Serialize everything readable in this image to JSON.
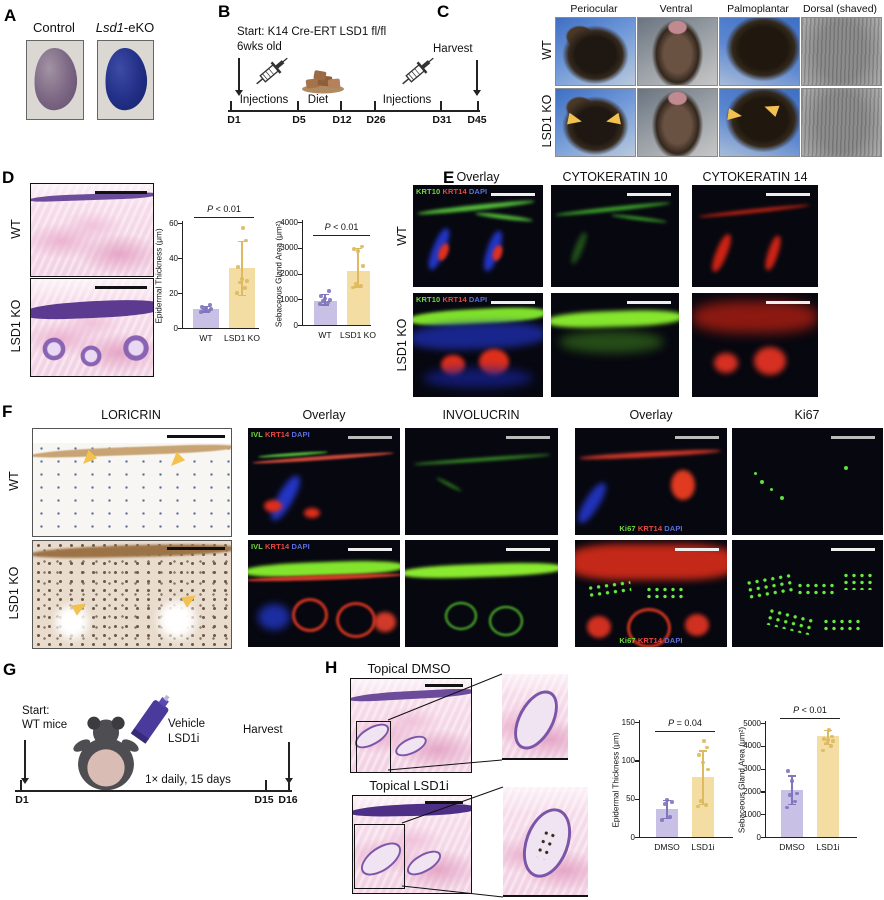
{
  "colors": {
    "purple_fill": "#c9c0e5",
    "purple_dot": "#8076bd",
    "yellow_fill": "#f4dda3",
    "yellow_dot": "#ddb95f",
    "arrowhead_gold": "#f2c14e",
    "krt_green": "#6fdc3c",
    "krt_red": "#e8483f",
    "dapi_blue": "#5b6ede"
  },
  "icons": {
    "syringe": "syringe-icon",
    "diet": "diet-chow-icon",
    "mouse": "mouse-icon",
    "tube": "ointment-tube-icon"
  },
  "panel_a": {
    "label": "A",
    "control": "Control",
    "eko_italic": "Lsd1",
    "eko_suffix": "-eKO"
  },
  "panel_b": {
    "label": "B",
    "line1": "Start: K14 Cre-ERT LSD1 fl/fl",
    "line2": "6wks old",
    "harvest": "Harvest",
    "segments": [
      "Injections",
      "Diet",
      "Injections"
    ],
    "timepoints": [
      "D1",
      "D5",
      "D12",
      "D26",
      "D31",
      "D45"
    ]
  },
  "panel_c": {
    "label": "C",
    "columns": [
      "Periocular",
      "Ventral",
      "Palmoplantar",
      "Dorsal (shaved)"
    ],
    "rows": [
      "WT",
      "LSD1 KO"
    ]
  },
  "panel_d": {
    "label": "D",
    "rows": [
      "WT",
      "LSD1 KO"
    ]
  },
  "panel_e": {
    "label": "E",
    "columns": [
      "Overlay",
      "CYTOKERATIN 10",
      "CYTOKERATIN 14"
    ],
    "rows": [
      "WT",
      "LSD1 KO"
    ],
    "legend": [
      "KRT10",
      "KRT14",
      "DAPI"
    ]
  },
  "panel_f": {
    "label": "F",
    "columns": [
      "LORICRIN",
      "Overlay",
      "INVOLUCRIN",
      "Overlay",
      "Ki67"
    ],
    "rows": [
      "WT",
      "LSD1 KO"
    ],
    "ivl_legend": [
      "IVL",
      "KRT14",
      "DAPI"
    ],
    "ki67_legend": [
      "Ki67",
      "KRT14",
      "DAPI"
    ]
  },
  "panel_g": {
    "label": "G",
    "start_line1": "Start:",
    "start_line2": "WT mice",
    "treatment_line1": "Vehicle",
    "treatment_line2": "LSD1i",
    "regimen": "1× daily, 15 days",
    "harvest": "Harvest",
    "timepoints": [
      "D1",
      "D15",
      "D16"
    ]
  },
  "panel_h": {
    "label": "H",
    "titles": [
      "Topical DMSO",
      "Topical LSD1i"
    ]
  },
  "chart_data": [
    {
      "type": "bar",
      "panel": "D",
      "categories": [
        "WT",
        "LSD1 KO"
      ],
      "values": [
        11,
        34.5
      ],
      "points": [
        [
          9,
          10,
          10.5,
          11,
          11.5,
          12,
          13
        ],
        [
          20,
          23,
          26,
          27,
          28,
          35,
          50,
          57
        ]
      ],
      "error": [
        [
          9.5,
          12.5
        ],
        [
          19,
          50
        ]
      ],
      "p_label": "P < 0.01",
      "ylabel": "Epidermal Thickness (μm)",
      "ylim": [
        0,
        60
      ],
      "yticks": [
        0,
        20,
        40,
        60
      ],
      "colors": [
        "purple",
        "yellow"
      ]
    },
    {
      "type": "bar",
      "panel": "D",
      "categories": [
        "WT",
        "LSD1 KO"
      ],
      "values": [
        950,
        2100
      ],
      "points": [
        [
          820,
          880,
          930,
          970,
          1030,
          1120,
          1320
        ],
        [
          1450,
          1520,
          1600,
          2300,
          2880,
          2950,
          3050
        ]
      ],
      "error": [
        [
          800,
          1200
        ],
        [
          1500,
          3000
        ]
      ],
      "p_label": "P < 0.01",
      "ylabel": "Sebaceous Gland Area (μm²)",
      "ylim": [
        0,
        4000
      ],
      "yticks": [
        0,
        1000,
        2000,
        3000,
        4000
      ],
      "colors": [
        "purple",
        "yellow"
      ]
    },
    {
      "type": "bar",
      "panel": "H",
      "categories": [
        "DMSO",
        "LSD1i"
      ],
      "values": [
        37,
        78
      ],
      "points": [
        [
          22,
          26,
          43,
          46,
          48
        ],
        [
          40,
          42,
          47,
          88,
          97,
          107,
          117,
          125
        ]
      ],
      "error": [
        [
          25,
          48
        ],
        [
          43,
          113
        ]
      ],
      "p_label": "P = 0.04",
      "ylabel": "Epidermal Thickness (μm)",
      "ylim": [
        0,
        150
      ],
      "yticks": [
        0,
        50,
        100,
        150
      ],
      "colors": [
        "purple",
        "yellow"
      ]
    },
    {
      "type": "bar",
      "panel": "H",
      "categories": [
        "DMSO",
        "LSD1i"
      ],
      "values": [
        2080,
        4450
      ],
      "points": [
        [
          1300,
          1550,
          1850,
          1900,
          2450,
          2900
        ],
        [
          3800,
          4000,
          4100,
          4200,
          4250,
          4300,
          4400,
          4700
        ]
      ],
      "error": [
        [
          1450,
          2700
        ],
        [
          4100,
          4700
        ]
      ],
      "p_label": "P < 0.01",
      "ylabel": "Sebaceous Gland Area (μm²)",
      "ylim": [
        0,
        5000
      ],
      "yticks": [
        0,
        1000,
        2000,
        3000,
        4000,
        5000
      ],
      "colors": [
        "purple",
        "yellow"
      ]
    }
  ]
}
